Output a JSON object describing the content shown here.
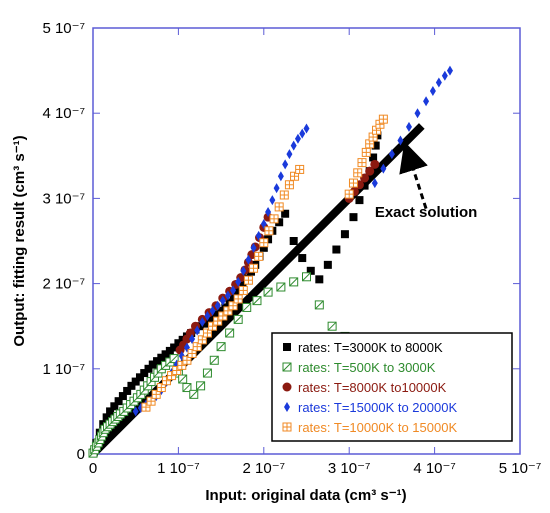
{
  "chart_data": {
    "type": "scatter",
    "xlabel": "Input: original data (cm³ s⁻¹)",
    "ylabel": "Output: fitting result  (cm³ s⁻¹)",
    "xlim": [
      0,
      5e-07
    ],
    "ylim": [
      0,
      5e-07
    ],
    "x_ticks": [
      {
        "value": 0,
        "label": "0"
      },
      {
        "value": 1e-07,
        "label": "1 10⁻⁷"
      },
      {
        "value": 2e-07,
        "label": "2 10⁻⁷"
      },
      {
        "value": 3e-07,
        "label": "3 10⁻⁷"
      },
      {
        "value": 4e-07,
        "label": "4 10⁻⁷"
      },
      {
        "value": 5e-07,
        "label": "5 10⁻⁷"
      }
    ],
    "y_ticks": [
      {
        "value": 0,
        "label": "0"
      },
      {
        "value": 1e-07,
        "label": "1 10⁻⁷"
      },
      {
        "value": 2e-07,
        "label": "2 10⁻⁷"
      },
      {
        "value": 3e-07,
        "label": "3 10⁻⁷"
      },
      {
        "value": 4e-07,
        "label": "4 10⁻⁷"
      },
      {
        "value": 5e-07,
        "label": "5 10⁻⁷"
      }
    ],
    "grid": false,
    "legend_position": "bottom-right",
    "axis_color": "#5b5bd6",
    "exact_line": {
      "name": "Exact solution",
      "x": [
        0,
        3.85e-07
      ],
      "y": [
        0,
        3.85e-07
      ],
      "color": "#000000"
    },
    "annotation": {
      "text": "Exact solution",
      "text_at": [
        3.3e-07,
        2.78e-07
      ],
      "arrow_from": [
        3.9e-07,
        2.88e-07
      ],
      "arrow_to": [
        3.7e-07,
        3.5e-07
      ]
    },
    "series": [
      {
        "name": "rates: T=3000K to 8000K",
        "marker": "square-filled",
        "color": "#000000",
        "x": [
          1e-09,
          4e-09,
          8e-09,
          1.2e-08,
          1.6e-08,
          2e-08,
          2.5e-08,
          3e-08,
          3.5e-08,
          4e-08,
          4.5e-08,
          5e-08,
          5.5e-08,
          6e-08,
          6.5e-08,
          7e-08,
          7.5e-08,
          8e-08,
          8.5e-08,
          9e-08,
          9.5e-08,
          1e-07,
          1.05e-07,
          1.1e-07,
          1.15e-07,
          1.2e-07,
          1.25e-07,
          1.3e-07,
          1.35e-07,
          1.4e-07,
          1.45e-07,
          1.5e-07,
          1.55e-07,
          1.6e-07,
          1.65e-07,
          1.7e-07,
          1.75e-07,
          1.8e-07,
          1.85e-07,
          1.9e-07,
          1.95e-07,
          2e-07,
          2.05e-07,
          2.1e-07,
          2.18e-07,
          2.25e-07,
          2.35e-07,
          2.45e-07,
          2.55e-07,
          2.65e-07,
          2.75e-07,
          2.85e-07,
          2.95e-07,
          3.05e-07,
          3.12e-07,
          3.18e-07,
          3.24e-07,
          3.28e-07,
          3.31e-07,
          3.33e-07
        ],
        "y": [
          2e-09,
          1.3e-08,
          2.5e-08,
          3.5e-08,
          4.3e-08,
          5e-08,
          5.6e-08,
          6.2e-08,
          6.8e-08,
          7.4e-08,
          8e-08,
          8.5e-08,
          9e-08,
          9.5e-08,
          1e-07,
          1.05e-07,
          1.09e-07,
          1.13e-07,
          1.17e-07,
          1.21e-07,
          1.25e-07,
          1.3e-07,
          1.34e-07,
          1.38e-07,
          1.42e-07,
          1.46e-07,
          1.5e-07,
          1.53e-07,
          1.56e-07,
          1.6e-07,
          1.64e-07,
          1.68e-07,
          1.72e-07,
          1.78e-07,
          1.84e-07,
          1.9e-07,
          1.98e-07,
          2.06e-07,
          2.14e-07,
          2.22e-07,
          2.32e-07,
          2.42e-07,
          2.52e-07,
          2.62e-07,
          2.72e-07,
          2.82e-07,
          2.5e-07,
          2.3e-07,
          2.15e-07,
          2.05e-07,
          2.22e-07,
          2.4e-07,
          2.58e-07,
          2.78e-07,
          2.98e-07,
          3.15e-07,
          3.32e-07,
          3.48e-07,
          3.62e-07,
          3.74e-07
        ]
      },
      {
        "name": "rates: T=500K to 3000K",
        "marker": "square-open-hatched",
        "color": "#2e8b2e",
        "x": [
          0.0,
          2e-09,
          4e-09,
          6e-09,
          8e-09,
          1e-08,
          1.2e-08,
          1.4e-08,
          1.7e-08,
          2e-08,
          2.3e-08,
          2.6e-08,
          2.9e-08,
          3.2e-08,
          3.6e-08,
          4e-08,
          4.4e-08,
          4.8e-08,
          5.2e-08,
          5.6e-08,
          6e-08,
          6.4e-08,
          6.8e-08,
          7.2e-08,
          7.6e-08,
          8e-08,
          8.5e-08,
          9e-08,
          9.5e-08,
          1e-07,
          1.05e-07,
          1.1e-07,
          1.18e-07,
          1.26e-07,
          1.34e-07,
          1.42e-07,
          1.5e-07,
          1.6e-07,
          1.7e-07,
          1.8e-07,
          1.92e-07,
          2.05e-07,
          2.2e-07,
          2.35e-07,
          2.5e-07,
          2.65e-07,
          2.8e-07,
          2.95e-07
        ],
        "y": [
          1e-09,
          5e-09,
          9e-09,
          1.3e-08,
          1.7e-08,
          2.1e-08,
          2.5e-08,
          2.9e-08,
          3.2e-08,
          3.5e-08,
          3.8e-08,
          4.1e-08,
          4.4e-08,
          4.7e-08,
          5e-08,
          5.4e-08,
          5.8e-08,
          6.2e-08,
          6.6e-08,
          7e-08,
          7.5e-08,
          8e-08,
          8.5e-08,
          9e-08,
          9.5e-08,
          1e-07,
          1.04e-07,
          1.08e-07,
          1.12e-07,
          9.5e-08,
          8.8e-08,
          7.8e-08,
          7e-08,
          8e-08,
          9.5e-08,
          1.1e-07,
          1.26e-07,
          1.42e-07,
          1.58e-07,
          1.72e-07,
          1.8e-07,
          1.9e-07,
          1.96e-07,
          2.02e-07,
          2.08e-07,
          1.75e-07,
          1.5e-07,
          1.38e-07
        ]
      },
      {
        "name": "rates: T=8000K to10000K",
        "marker": "circle-filled",
        "color": "#8b1a10",
        "x": [
          1.02e-07,
          1.06e-07,
          1.1e-07,
          1.14e-07,
          1.2e-07,
          1.28e-07,
          1.36e-07,
          1.44e-07,
          1.52e-07,
          1.6e-07,
          1.67e-07,
          1.73e-07,
          1.78e-07,
          1.82e-07,
          1.86e-07,
          1.9e-07,
          1.95e-07,
          2e-07,
          2.05e-07,
          3e-07,
          3.06e-07,
          3.12e-07,
          3.18e-07,
          3.24e-07,
          3.3e-07
        ],
        "y": [
          1.22e-07,
          1.28e-07,
          1.35e-07,
          1.42e-07,
          1.5e-07,
          1.58e-07,
          1.66e-07,
          1.74e-07,
          1.83e-07,
          1.91e-07,
          1.99e-07,
          2.07e-07,
          2.16e-07,
          2.25e-07,
          2.34e-07,
          2.43e-07,
          2.54e-07,
          2.66e-07,
          2.78e-07,
          3e-07,
          3.08e-07,
          3.16e-07,
          3.24e-07,
          3.32e-07,
          3.4e-07
        ]
      },
      {
        "name": "rates: T=15000K to 20000K",
        "marker": "diamond-filled",
        "color": "#1a3adb",
        "x": [
          5e-08,
          5.6e-08,
          6.2e-08,
          6.8e-08,
          7.4e-08,
          8e-08,
          8.6e-08,
          9.2e-08,
          9.8e-08,
          1.04e-07,
          1.1e-07,
          1.16e-07,
          1.22e-07,
          1.28e-07,
          1.34e-07,
          1.4e-07,
          1.46e-07,
          1.52e-07,
          1.58e-07,
          1.64e-07,
          1.7e-07,
          1.76e-07,
          1.82e-07,
          1.88e-07,
          1.94e-07,
          2e-07,
          2.05e-07,
          2.1e-07,
          2.15e-07,
          2.2e-07,
          2.25e-07,
          2.3e-07,
          2.35e-07,
          2.4e-07,
          2.45e-07,
          2.5e-07,
          3.3e-07,
          3.4e-07,
          3.5e-07,
          3.6e-07,
          3.7e-07,
          3.8e-07,
          3.9e-07,
          3.98e-07,
          4.05e-07,
          4.12e-07,
          4.18e-07
        ],
        "y": [
          5e-08,
          5.4e-08,
          5.8e-08,
          6.3e-08,
          6.8e-08,
          7.5e-08,
          8.5e-08,
          9.5e-08,
          1.05e-07,
          1.15e-07,
          1.25e-07,
          1.35e-07,
          1.45e-07,
          1.55e-07,
          1.62e-07,
          1.68e-07,
          1.74e-07,
          1.8e-07,
          1.86e-07,
          1.92e-07,
          2.02e-07,
          2.15e-07,
          2.28e-07,
          2.42e-07,
          2.56e-07,
          2.7e-07,
          2.84e-07,
          2.98e-07,
          3.12e-07,
          3.26e-07,
          3.4e-07,
          3.52e-07,
          3.62e-07,
          3.7e-07,
          3.76e-07,
          3.82e-07,
          3.18e-07,
          3.35e-07,
          3.52e-07,
          3.68e-07,
          3.84e-07,
          4e-07,
          4.14e-07,
          4.26e-07,
          4.36e-07,
          4.44e-07,
          4.5e-07
        ]
      },
      {
        "name": "rates: T=10000K to 15000K",
        "marker": "square-open-cross",
        "color": "#f08a24",
        "x": [
          6.2e-08,
          6.8e-08,
          7.4e-08,
          8e-08,
          8.6e-08,
          9.2e-08,
          9.8e-08,
          1.04e-07,
          1.1e-07,
          1.16e-07,
          1.22e-07,
          1.28e-07,
          1.34e-07,
          1.4e-07,
          1.46e-07,
          1.52e-07,
          1.58e-07,
          1.64e-07,
          1.7e-07,
          1.76e-07,
          1.82e-07,
          1.88e-07,
          1.94e-07,
          2e-07,
          2.06e-07,
          2.12e-07,
          2.18e-07,
          2.24e-07,
          2.3e-07,
          2.36e-07,
          2.42e-07,
          3e-07,
          3.05e-07,
          3.1e-07,
          3.15e-07,
          3.2e-07,
          3.24e-07,
          3.28e-07,
          3.32e-07,
          3.36e-07,
          3.4e-07
        ],
        "y": [
          5.5e-08,
          6.2e-08,
          7e-08,
          7.8e-08,
          8.6e-08,
          9.2e-08,
          9.8e-08,
          1.04e-07,
          1.1e-07,
          1.18e-07,
          1.26e-07,
          1.34e-07,
          1.42e-07,
          1.5e-07,
          1.56e-07,
          1.62e-07,
          1.68e-07,
          1.74e-07,
          1.82e-07,
          1.92e-07,
          2.04e-07,
          2.18e-07,
          2.32e-07,
          2.48e-07,
          2.62e-07,
          2.76e-07,
          2.9e-07,
          3.04e-07,
          3.16e-07,
          3.26e-07,
          3.34e-07,
          3.05e-07,
          3.18e-07,
          3.3e-07,
          3.42e-07,
          3.54e-07,
          3.64e-07,
          3.72e-07,
          3.8e-07,
          3.87e-07,
          3.93e-07
        ]
      }
    ]
  }
}
